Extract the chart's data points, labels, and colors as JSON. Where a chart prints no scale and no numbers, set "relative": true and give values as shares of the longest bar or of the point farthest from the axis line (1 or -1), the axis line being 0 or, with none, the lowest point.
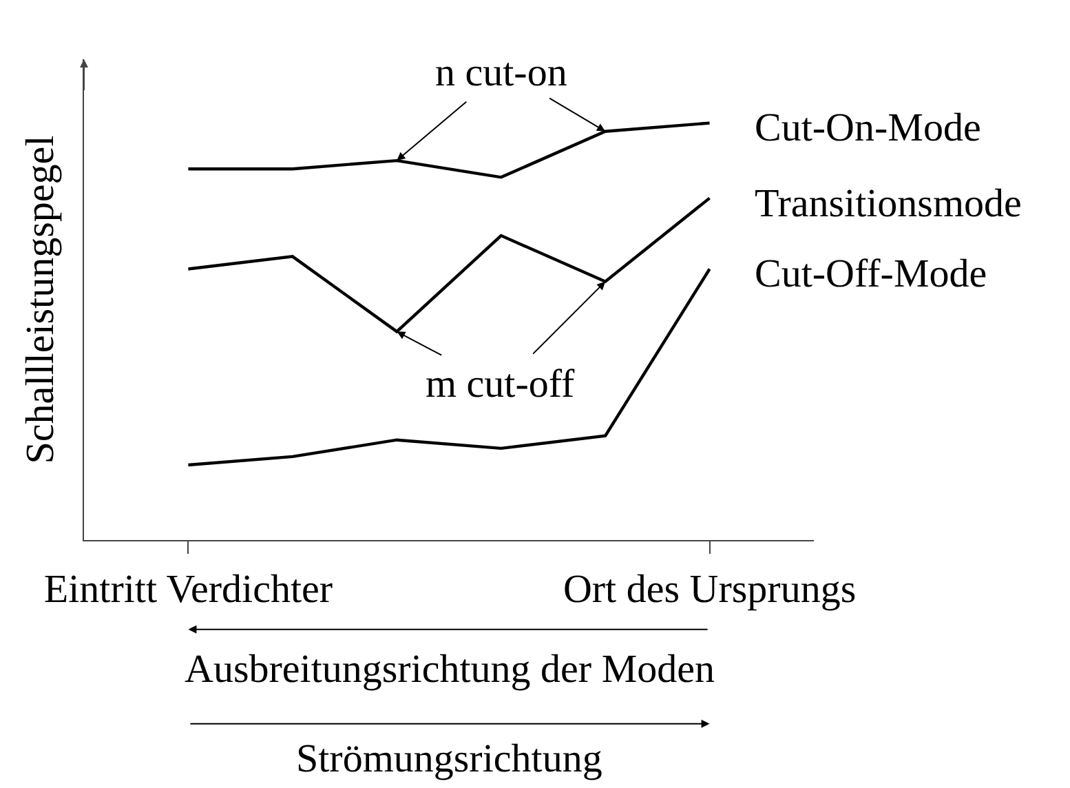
{
  "chart_data": {
    "type": "line",
    "relative": true,
    "ylabel": "Schallleistungspegel",
    "categories": [
      "Eintritt Verdichter",
      null,
      null,
      null,
      null,
      "Ort des Ursprungs"
    ],
    "series": [
      {
        "name": "Cut-On-Mode",
        "color": "#000000",
        "values": [
          0.89,
          0.89,
          0.91,
          0.87,
          0.98,
          1
        ]
      },
      {
        "name": "Transitionsmode",
        "color": "#000000",
        "values": [
          0.65,
          0.68,
          0.5,
          0.73,
          0.62,
          0.82
        ]
      },
      {
        "name": "Cut-Off-Mode",
        "color": "#000000",
        "values": [
          0.18,
          0.2,
          0.24,
          0.22,
          0.25,
          0.65
        ]
      }
    ],
    "annotations": [
      "n cut-on",
      "m cut-off",
      "Ausbreitungsrichtung der Moden",
      "Strömungsrichtung"
    ]
  }
}
